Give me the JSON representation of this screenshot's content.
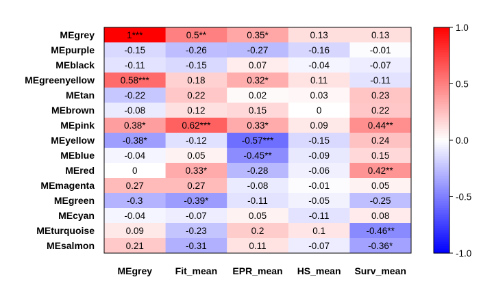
{
  "chart_data": {
    "type": "heatmap",
    "title": "",
    "xlabel": "",
    "ylabel": "",
    "rows": [
      "MEgrey",
      "MEpurple",
      "MEblack",
      "MEgreenyellow",
      "MEtan",
      "MEbrown",
      "MEpink",
      "MEyellow",
      "MEblue",
      "MEred",
      "MEmagenta",
      "MEgreen",
      "MEcyan",
      "MEturquoise",
      "MEsalmon"
    ],
    "columns": [
      "MEgrey",
      "Fit_mean",
      "EPR_mean",
      "HS_mean",
      "Surv_mean"
    ],
    "values": [
      [
        1,
        0.5,
        0.35,
        0.13,
        0.13
      ],
      [
        -0.15,
        -0.26,
        -0.27,
        -0.16,
        -0.01
      ],
      [
        -0.11,
        -0.15,
        0.07,
        -0.04,
        -0.07
      ],
      [
        0.58,
        0.18,
        0.32,
        0.11,
        -0.11
      ],
      [
        -0.22,
        0.22,
        0.02,
        0.03,
        0.23
      ],
      [
        -0.08,
        0.12,
        0.15,
        0,
        0.22
      ],
      [
        0.38,
        0.62,
        0.33,
        0.09,
        0.44
      ],
      [
        -0.38,
        -0.12,
        -0.57,
        -0.15,
        0.24
      ],
      [
        -0.04,
        0.05,
        -0.45,
        -0.09,
        0.15
      ],
      [
        0,
        0.33,
        -0.28,
        -0.06,
        0.42
      ],
      [
        0.27,
        0.27,
        -0.08,
        -0.01,
        0.05
      ],
      [
        -0.3,
        -0.39,
        -0.11,
        -0.05,
        -0.25
      ],
      [
        -0.04,
        -0.07,
        0.05,
        -0.11,
        0.08
      ],
      [
        0.09,
        -0.23,
        0.2,
        0.1,
        -0.46
      ],
      [
        0.21,
        -0.31,
        0.11,
        -0.07,
        -0.36
      ]
    ],
    "labels": [
      [
        "1***",
        "0.5**",
        "0.35*",
        "0.13",
        "0.13"
      ],
      [
        "-0.15",
        "-0.26",
        "-0.27",
        "-0.16",
        "-0.01"
      ],
      [
        "-0.11",
        "-0.15",
        "0.07",
        "-0.04",
        "-0.07"
      ],
      [
        "0.58***",
        "0.18",
        "0.32*",
        "0.11",
        "-0.11"
      ],
      [
        "-0.22",
        "0.22",
        "0.02",
        "0.03",
        "0.23"
      ],
      [
        "-0.08",
        "0.12",
        "0.15",
        "0",
        "0.22"
      ],
      [
        "0.38*",
        "0.62***",
        "0.33*",
        "0.09",
        "0.44**"
      ],
      [
        "-0.38*",
        "-0.12",
        "-0.57***",
        "-0.15",
        "0.24"
      ],
      [
        "-0.04",
        "0.05",
        "-0.45**",
        "-0.09",
        "0.15"
      ],
      [
        "0",
        "0.33*",
        "-0.28",
        "-0.06",
        "0.42**"
      ],
      [
        "0.27",
        "0.27",
        "-0.08",
        "-0.01",
        "0.05"
      ],
      [
        "-0.3",
        "-0.39*",
        "-0.11",
        "-0.05",
        "-0.25"
      ],
      [
        "-0.04",
        "-0.07",
        "0.05",
        "-0.11",
        "0.08"
      ],
      [
        "0.09",
        "-0.23",
        "0.2",
        "0.1",
        "-0.46**"
      ],
      [
        "0.21",
        "-0.31",
        "0.11",
        "-0.07",
        "-0.36*"
      ]
    ],
    "colorscale": {
      "range": [
        -1,
        1
      ],
      "low_color": "#0000ff",
      "mid_color": "#ffffff",
      "high_color": "#ff0000",
      "ticks": [
        1,
        0.5,
        0,
        -0.5,
        -1
      ],
      "tick_labels": [
        "1.0",
        "0.5",
        "0.0",
        "-0.5",
        "-1.0"
      ]
    },
    "legend_position": "right",
    "grid": false
  }
}
